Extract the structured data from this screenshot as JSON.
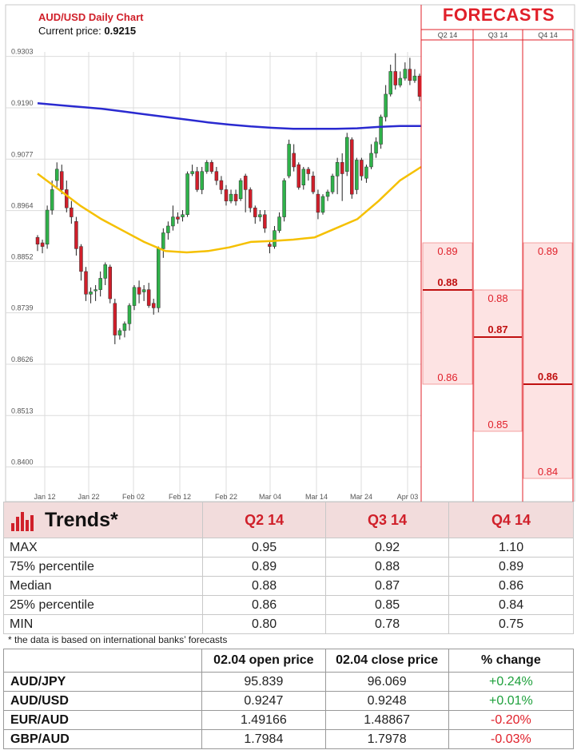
{
  "chart": {
    "title": "AUD/USD Daily Chart",
    "current_price_label": "Current price:",
    "current_price": "0.9215"
  },
  "forecasts": {
    "title": "FORECASTS",
    "quarters": [
      "Q2 14",
      "Q3 14",
      "Q4 14"
    ]
  },
  "chart_data": {
    "type": "candlestick",
    "ylim": [
      0.838,
      0.932
    ],
    "y_ticks": [
      "0.9303",
      "0.9190",
      "0.9077",
      "0.8964",
      "0.8852",
      "0.8739",
      "0.8626",
      "0.8513",
      "0.8400"
    ],
    "x_ticks": [
      "Jan 12",
      "Jan 22",
      "Feb 02",
      "Feb 12",
      "Feb 22",
      "Mar 04",
      "Mar 14",
      "Mar 24",
      "Apr 03"
    ],
    "candles": [
      [
        0.8905,
        0.889,
        0.891,
        0.8875
      ],
      [
        0.8893,
        0.8885,
        0.89,
        0.887
      ],
      [
        0.889,
        0.8965,
        0.8975,
        0.888
      ],
      [
        0.8965,
        0.901,
        0.903,
        0.8955
      ],
      [
        0.903,
        0.9055,
        0.907,
        0.9015
      ],
      [
        0.905,
        0.901,
        0.9065,
        0.9
      ],
      [
        0.901,
        0.897,
        0.903,
        0.896
      ],
      [
        0.897,
        0.895,
        0.8985,
        0.8935
      ],
      [
        0.894,
        0.888,
        0.895,
        0.8865
      ],
      [
        0.8885,
        0.883,
        0.889,
        0.881
      ],
      [
        0.883,
        0.878,
        0.884,
        0.8765
      ],
      [
        0.878,
        0.8785,
        0.8795,
        0.876
      ],
      [
        0.879,
        0.879,
        0.88,
        0.8765
      ],
      [
        0.879,
        0.8815,
        0.883,
        0.8775
      ],
      [
        0.8815,
        0.8845,
        0.885,
        0.88
      ],
      [
        0.884,
        0.877,
        0.8845,
        0.876
      ],
      [
        0.876,
        0.869,
        0.877,
        0.867
      ],
      [
        0.869,
        0.87,
        0.8705,
        0.868
      ],
      [
        0.87,
        0.8715,
        0.872,
        0.8685
      ],
      [
        0.8715,
        0.8755,
        0.876,
        0.87
      ],
      [
        0.8755,
        0.8795,
        0.88,
        0.8745
      ],
      [
        0.8795,
        0.878,
        0.881,
        0.876
      ],
      [
        0.8785,
        0.879,
        0.88,
        0.8765
      ],
      [
        0.879,
        0.8755,
        0.8805,
        0.875
      ],
      [
        0.876,
        0.875,
        0.877,
        0.8735
      ],
      [
        0.875,
        0.888,
        0.8885,
        0.874
      ],
      [
        0.888,
        0.8915,
        0.8925,
        0.886
      ],
      [
        0.8915,
        0.893,
        0.894,
        0.89
      ],
      [
        0.893,
        0.895,
        0.8975,
        0.892
      ],
      [
        0.895,
        0.8945,
        0.896,
        0.8935
      ],
      [
        0.895,
        0.8955,
        0.8965,
        0.894
      ],
      [
        0.8955,
        0.9045,
        0.905,
        0.895
      ],
      [
        0.9045,
        0.905,
        0.9065,
        0.904
      ],
      [
        0.905,
        0.901,
        0.906,
        0.9005
      ],
      [
        0.901,
        0.905,
        0.906,
        0.9
      ],
      [
        0.905,
        0.907,
        0.9075,
        0.9045
      ],
      [
        0.907,
        0.905,
        0.9075,
        0.9045
      ],
      [
        0.905,
        0.903,
        0.906,
        0.902
      ],
      [
        0.903,
        0.901,
        0.904,
        0.9
      ],
      [
        0.901,
        0.8985,
        0.902,
        0.8975
      ],
      [
        0.8985,
        0.9,
        0.901,
        0.898
      ],
      [
        0.9,
        0.8985,
        0.901,
        0.8975
      ],
      [
        0.899,
        0.903,
        0.9035,
        0.8985
      ],
      [
        0.904,
        0.901,
        0.9045,
        0.896
      ],
      [
        0.901,
        0.897,
        0.9015,
        0.896
      ],
      [
        0.897,
        0.895,
        0.8975,
        0.8935
      ],
      [
        0.895,
        0.8955,
        0.8965,
        0.894
      ],
      [
        0.8955,
        0.8925,
        0.8965,
        0.8915
      ],
      [
        0.889,
        0.8885,
        0.8895,
        0.887
      ],
      [
        0.8885,
        0.892,
        0.893,
        0.888
      ],
      [
        0.892,
        0.895,
        0.896,
        0.8915
      ],
      [
        0.895,
        0.903,
        0.9035,
        0.894
      ],
      [
        0.904,
        0.911,
        0.912,
        0.9035
      ],
      [
        0.909,
        0.906,
        0.911,
        0.905
      ],
      [
        0.9065,
        0.9015,
        0.907,
        0.901
      ],
      [
        0.902,
        0.9055,
        0.906,
        0.901
      ],
      [
        0.9055,
        0.9045,
        0.906,
        0.903
      ],
      [
        0.904,
        0.9005,
        0.905,
        0.9
      ],
      [
        0.9,
        0.896,
        0.901,
        0.8945
      ],
      [
        0.896,
        0.8995,
        0.9,
        0.8955
      ],
      [
        0.8995,
        0.9005,
        0.901,
        0.8985
      ],
      [
        0.9005,
        0.904,
        0.9045,
        0.9
      ],
      [
        0.904,
        0.907,
        0.908,
        0.9
      ],
      [
        0.907,
        0.9045,
        0.909,
        0.8985
      ],
      [
        0.905,
        0.9125,
        0.9135,
        0.904
      ],
      [
        0.912,
        0.9,
        0.9125,
        0.899
      ],
      [
        0.901,
        0.9075,
        0.908,
        0.9
      ],
      [
        0.9075,
        0.904,
        0.908,
        0.903
      ],
      [
        0.9035,
        0.906,
        0.9065,
        0.9025
      ],
      [
        0.906,
        0.909,
        0.911,
        0.9055
      ],
      [
        0.909,
        0.9115,
        0.9125,
        0.908
      ],
      [
        0.911,
        0.917,
        0.9175,
        0.91
      ],
      [
        0.917,
        0.922,
        0.924,
        0.916
      ],
      [
        0.922,
        0.927,
        0.9285,
        0.9215
      ],
      [
        0.927,
        0.924,
        0.931,
        0.923
      ],
      [
        0.924,
        0.9255,
        0.927,
        0.9235
      ],
      [
        0.9255,
        0.9275,
        0.929,
        0.925
      ],
      [
        0.9275,
        0.925,
        0.93,
        0.924
      ],
      [
        0.925,
        0.926,
        0.9275,
        0.9245
      ],
      [
        0.926,
        0.9215,
        0.9265,
        0.9205
      ]
    ],
    "series": [
      {
        "name": "",
        "color": "#2a2ad0",
        "values": [
          0.92,
          0.9196,
          0.9192,
          0.9188,
          0.9182,
          0.9176,
          0.917,
          0.9164,
          0.9158,
          0.9153,
          0.9149,
          0.9146,
          0.9144,
          0.9144,
          0.9144,
          0.9145,
          0.9148,
          0.915,
          0.915
        ]
      },
      {
        "name": "",
        "color": "#f5c000",
        "values": [
          0.9045,
          0.901,
          0.8975,
          0.8945,
          0.892,
          0.8895,
          0.8875,
          0.8872,
          0.8875,
          0.8883,
          0.8895,
          0.8897,
          0.89,
          0.8905,
          0.8925,
          0.8945,
          0.8985,
          0.903,
          0.906
        ]
      }
    ],
    "forecast_boxes": [
      {
        "quarter": "Q2 14",
        "top": 0.89,
        "median": 0.88,
        "bottom": 0.86
      },
      {
        "quarter": "Q3 14",
        "top": 0.88,
        "median": 0.87,
        "bottom": 0.85
      },
      {
        "quarter": "Q4 14",
        "top": 0.89,
        "median": 0.86,
        "bottom": 0.84
      }
    ],
    "forecast_labels": [
      [
        "0.89",
        "0.88",
        "0.86"
      ],
      [
        "0.88",
        "0.87",
        "0.85"
      ],
      [
        "0.89",
        "0.86",
        "0.84"
      ]
    ]
  },
  "trends": {
    "title": "Trends*",
    "headers": [
      "Q2 14",
      "Q3 14",
      "Q4 14"
    ],
    "rows": [
      {
        "label": "MAX",
        "values": [
          "0.95",
          "0.92",
          "1.10"
        ]
      },
      {
        "label": "75% percentile",
        "values": [
          "0.89",
          "0.88",
          "0.89"
        ]
      },
      {
        "label": "Median",
        "values": [
          "0.88",
          "0.87",
          "0.86"
        ]
      },
      {
        "label": "25% percentile",
        "values": [
          "0.86",
          "0.85",
          "0.84"
        ]
      },
      {
        "label": "MIN",
        "values": [
          "0.80",
          "0.78",
          "0.75"
        ]
      }
    ],
    "footnote": "* the data is based on international banks’ forecasts"
  },
  "fx": {
    "headers": [
      "",
      "02.04 open price",
      "02.04 close price",
      "% change"
    ],
    "rows": [
      {
        "pair": "AUD/JPY",
        "open": "95.839",
        "close": "96.069",
        "change": "+0.24%"
      },
      {
        "pair": "AUD/USD",
        "open": "0.9247",
        "close": "0.9248",
        "change": "+0.01%"
      },
      {
        "pair": "EUR/AUD",
        "open": "1.49166",
        "close": "1.48867",
        "change": "-0.20%"
      },
      {
        "pair": "GBP/AUD",
        "open": "1.7984",
        "close": "1.7978",
        "change": "-0.03%"
      }
    ]
  },
  "colors": {
    "up": "#2fb24a",
    "down": "#d01e2a",
    "accent": "#e0202a",
    "forecast_fill": "#fde3e3"
  }
}
